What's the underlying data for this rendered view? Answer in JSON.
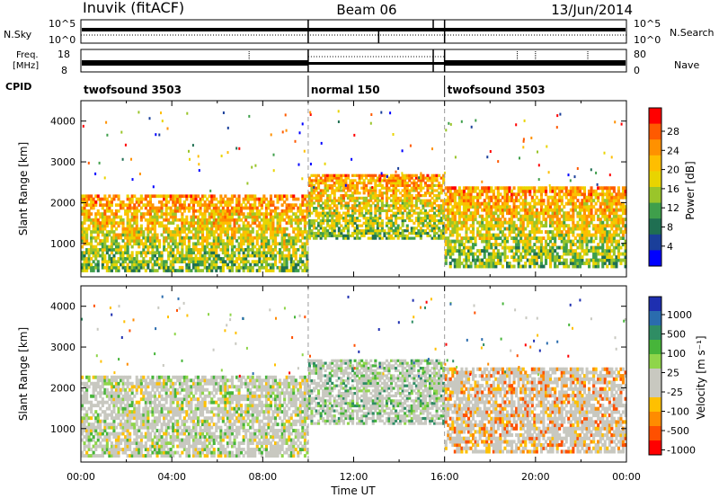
{
  "header": {
    "station": "Inuvik (fitACF)",
    "beam": "Beam 06",
    "date": "13/Jun/2014"
  },
  "sky_panel": {
    "left_label": "N.Sky",
    "right_label": "N.Search",
    "ticks_left": [
      "10^5",
      "10^0"
    ],
    "ticks_right": [
      "10^5",
      "10^0"
    ]
  },
  "freq_panel": {
    "left_label_1": "Freq.",
    "left_label_2": "[MHz]",
    "right_label": "Nave",
    "ticks_left": [
      "18",
      "8"
    ],
    "ticks_right": [
      "80",
      "0"
    ]
  },
  "cpid": {
    "label": "CPID",
    "segments": [
      {
        "start": 0,
        "end": 10,
        "name": "twofsound 3503"
      },
      {
        "start": 10,
        "end": 16,
        "name": "normal 150"
      },
      {
        "start": 16,
        "end": 24,
        "name": "twofsound 3503"
      }
    ]
  },
  "power_legend": {
    "title": "Power [dB]",
    "ticks": [
      "28",
      "24",
      "20",
      "16",
      "12",
      "8",
      "4"
    ],
    "colors": [
      "#ff0000",
      "#ff5a00",
      "#ff9100",
      "#ffbe00",
      "#e9d400",
      "#9ac52a",
      "#3f9f4b",
      "#1f6f52",
      "#1a3f9a",
      "#0000ff"
    ]
  },
  "velocity_legend": {
    "title": "Velocity [m s⁻¹]",
    "ticks": [
      "1000",
      "500",
      "100",
      "25",
      "-25",
      "-100",
      "-500",
      "-1000"
    ],
    "colors": [
      "#1e2fb0",
      "#2a6cae",
      "#2f8d64",
      "#47b53a",
      "#8fd54a",
      "#c8c8c0",
      "#c8c8c0",
      "#ffc000",
      "#ff8c00",
      "#ff5000",
      "#ff0000"
    ]
  },
  "chart_data": [
    {
      "type": "heatmap",
      "title": "Power",
      "xlabel": "Time UT",
      "ylabel": "Slant Range [km]",
      "xlim": [
        0,
        24
      ],
      "ylim": [
        180,
        4500
      ],
      "x_ticks": [
        "00:00",
        "04:00",
        "08:00",
        "12:00",
        "16:00",
        "20:00",
        "00:00"
      ],
      "y_ticks": [
        1000,
        2000,
        3000,
        4000
      ],
      "colorbar": "Power [dB]",
      "clim": [
        0,
        30
      ],
      "bands": [
        {
          "t0": 0.0,
          "t1": 10.0,
          "r0": 300,
          "r1": 2200,
          "mean": 17
        },
        {
          "t0": 10.0,
          "t1": 16.0,
          "r0": 1100,
          "r1": 2700,
          "mean": 12
        },
        {
          "t0": 16.0,
          "t1": 24.0,
          "r0": 400,
          "r1": 2400,
          "mean": 16
        }
      ]
    },
    {
      "type": "heatmap",
      "title": "Velocity",
      "xlabel": "Time UT",
      "ylabel": "Slant Range [km]",
      "xlim": [
        0,
        24
      ],
      "ylim": [
        180,
        4500
      ],
      "x_ticks": [
        "00:00",
        "04:00",
        "08:00",
        "12:00",
        "16:00",
        "20:00",
        "00:00"
      ],
      "y_ticks": [
        1000,
        2000,
        3000,
        4000
      ],
      "colorbar": "Velocity [m s⁻¹]",
      "clim": [
        -1000,
        1000
      ],
      "bands": [
        {
          "t0": 0.0,
          "t1": 10.0,
          "r0": 300,
          "r1": 2300,
          "mean": -40
        },
        {
          "t0": 10.0,
          "t1": 16.0,
          "r0": 1100,
          "r1": 2700,
          "mean": 20
        },
        {
          "t0": 16.0,
          "t1": 24.0,
          "r0": 400,
          "r1": 2500,
          "mean": -60
        }
      ]
    }
  ],
  "x_axis_title": "Time UT"
}
